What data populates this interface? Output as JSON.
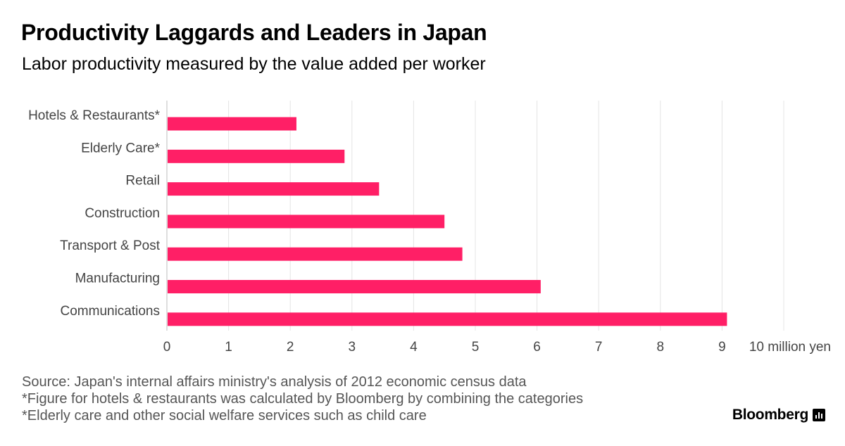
{
  "header": {
    "title": "Productivity Laggards and Leaders in Japan",
    "subtitle": "Labor productivity measured by the value added per worker"
  },
  "chart_data": {
    "type": "bar",
    "orientation": "horizontal",
    "categories": [
      "Hotels & Restaurants*",
      "Elderly Care*",
      "Retail",
      "Construction",
      "Transport & Post",
      "Manufacturing",
      "Communications"
    ],
    "values": [
      2.1,
      2.88,
      3.44,
      4.5,
      4.79,
      6.06,
      9.08
    ],
    "xticks": [
      0,
      1,
      2,
      3,
      4,
      5,
      6,
      7,
      8,
      9
    ],
    "xlim": [
      0,
      10
    ],
    "unit_label": "10 million yen",
    "grid": "vertical",
    "bar_color": "#ff1f66"
  },
  "footer": {
    "notes": [
      "Source: Japan's internal affairs ministry's analysis of 2012 economic census data",
      "*Figure for hotels & restaurants was calculated by Bloomberg by combining the categories",
      "*Elderly care and other social welfare services such as child care"
    ],
    "brand": "Bloomberg",
    "brand_icon": "bloomberg-chart-icon"
  }
}
